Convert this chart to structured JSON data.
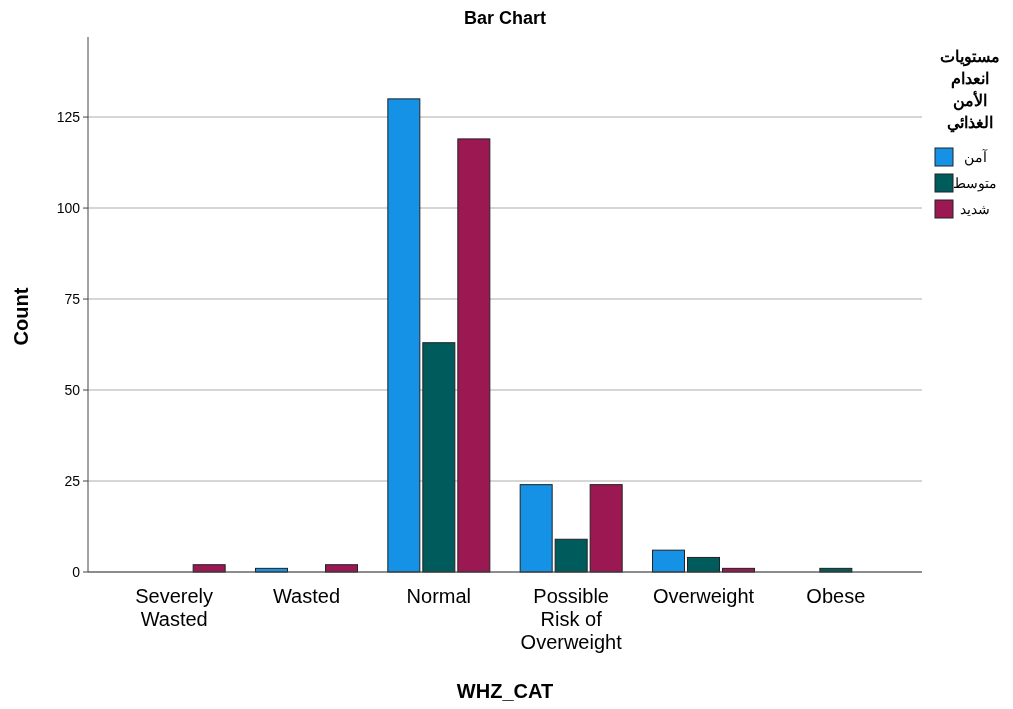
{
  "chart_data": {
    "type": "bar",
    "title": "Bar Chart",
    "xlabel": "WHZ_CAT",
    "ylabel": "Count",
    "legend_title": "مستويات انعدام الأمن الغذائي",
    "categories": [
      "Severely Wasted",
      "Wasted",
      "Normal",
      "Possible Risk of Overweight",
      "Overweight",
      "Obese"
    ],
    "series": [
      {
        "name": "آمن",
        "color": "#1592e6",
        "values": [
          0,
          1,
          130,
          24,
          6,
          0
        ]
      },
      {
        "name": "متوسط",
        "color": "#005c5c",
        "values": [
          0,
          0,
          63,
          9,
          4,
          1
        ]
      },
      {
        "name": "شديد",
        "color": "#9c1853",
        "values": [
          2,
          2,
          119,
          24,
          1,
          0
        ]
      }
    ],
    "ylim": [
      0,
      147
    ],
    "yticks": [
      0,
      25,
      50,
      75,
      100,
      125
    ],
    "grid": "y",
    "legend": "right"
  }
}
